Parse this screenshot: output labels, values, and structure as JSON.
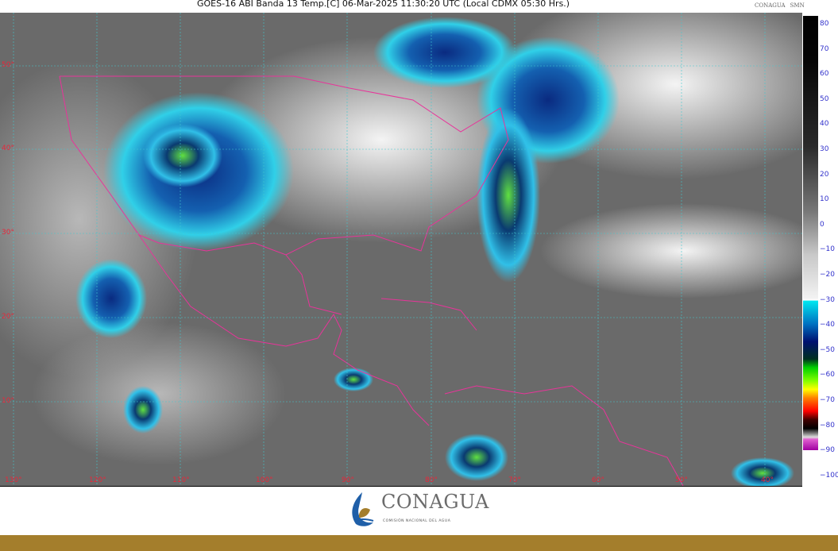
{
  "header": {
    "title": "GOES-16 ABI Banda 13 Temp.[C] 06-Mar-2025 11:30:20 UTC (Local CDMX  05:30 Hrs.)",
    "logos": [
      "CONAGUA",
      "SMN"
    ]
  },
  "map": {
    "latitude_labels": [
      "50°",
      "40°",
      "30°",
      "20°",
      "10°"
    ],
    "longitude_labels": [
      "130°",
      "120°",
      "110°",
      "100°",
      "90°",
      "80°",
      "70°",
      "60°",
      "50°",
      "40°"
    ],
    "grid_color": "#40c8d0",
    "border_color": "#e8349a"
  },
  "colorbar": {
    "unit": "C",
    "ticks": [
      "80",
      "70",
      "60",
      "50",
      "40",
      "30",
      "20",
      "10",
      "0",
      "−10",
      "−20",
      "−30",
      "−40",
      "−50",
      "−60",
      "−70",
      "−80",
      "−90",
      "−100"
    ]
  },
  "footer": {
    "logo_name": "CONAGUA",
    "logo_subtitle": "COMISIÓN NACIONAL DEL AGUA",
    "bar_color": "#a47e2c"
  }
}
